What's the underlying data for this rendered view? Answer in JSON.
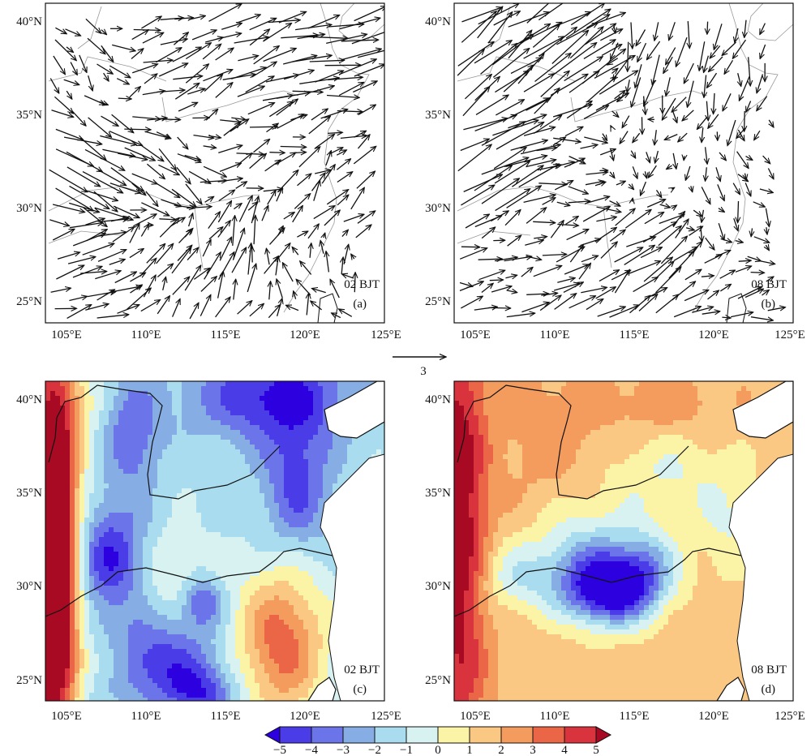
{
  "chart_data": [
    {
      "type": "vector_field",
      "panel": "a",
      "stamp": "02 BJT",
      "label": "(a)",
      "x_ticks": [
        "105°E",
        "110°E",
        "115°E",
        "120°E",
        "125°E"
      ],
      "y_ticks": [
        "25°N",
        "30°N",
        "35°N",
        "40°N"
      ],
      "xlim": [
        103.7,
        125
      ],
      "ylim": [
        24.0,
        40.8
      ],
      "reference_vector": {
        "magnitude": "3"
      },
      "region_flows": [
        {
          "lon": 106,
          "lat": 37,
          "u": 1.0,
          "v": -1.0
        },
        {
          "lon": 106,
          "lat": 32,
          "u": 2.5,
          "v": -1.2
        },
        {
          "lon": 106,
          "lat": 27,
          "u": 2.0,
          "v": 0.6
        },
        {
          "lon": 111,
          "lat": 37,
          "u": 1.6,
          "v": 0.8
        },
        {
          "lon": 111,
          "lat": 32,
          "u": 1.5,
          "v": -1.2
        },
        {
          "lon": 111,
          "lat": 27,
          "u": 0.8,
          "v": 1.5
        },
        {
          "lon": 116,
          "lat": 38,
          "u": 2.0,
          "v": 0.8
        },
        {
          "lon": 116,
          "lat": 33,
          "u": 1.5,
          "v": 0.5
        },
        {
          "lon": 116,
          "lat": 27,
          "u": 0.5,
          "v": 1.8
        },
        {
          "lon": 121,
          "lat": 38,
          "u": 2.5,
          "v": 0.5
        },
        {
          "lon": 121,
          "lat": 30,
          "u": 1.0,
          "v": 1.0
        },
        {
          "lon": 121,
          "lat": 26,
          "u": -0.5,
          "v": 1.0
        }
      ]
    },
    {
      "type": "vector_field",
      "panel": "b",
      "stamp": "08 BJT",
      "label": "(b)",
      "x_ticks": [
        "105°E",
        "110°E",
        "115°E",
        "120°E",
        "125°E"
      ],
      "y_ticks": [
        "25°N",
        "30°N",
        "35°N",
        "40°N"
      ],
      "xlim": [
        103.7,
        125
      ],
      "ylim": [
        24.0,
        40.8
      ],
      "region_flows": [
        {
          "lon": 106,
          "lat": 37,
          "u": 2.5,
          "v": 1.8
        },
        {
          "lon": 106,
          "lat": 32,
          "u": 3.0,
          "v": 1.5
        },
        {
          "lon": 106,
          "lat": 27,
          "u": 1.5,
          "v": 0.2
        },
        {
          "lon": 111,
          "lat": 37,
          "u": 3.0,
          "v": 2.0
        },
        {
          "lon": 111,
          "lat": 32,
          "u": 1.2,
          "v": 0.0
        },
        {
          "lon": 111,
          "lat": 27,
          "u": 1.5,
          "v": 0.8
        },
        {
          "lon": 116,
          "lat": 38,
          "u": -0.8,
          "v": -1.8
        },
        {
          "lon": 116,
          "lat": 33,
          "u": -0.4,
          "v": -0.6
        },
        {
          "lon": 116,
          "lat": 27,
          "u": 2.0,
          "v": 1.5
        },
        {
          "lon": 121,
          "lat": 38,
          "u": -0.4,
          "v": -1.6
        },
        {
          "lon": 121,
          "lat": 30,
          "u": 0.4,
          "v": -1.0
        },
        {
          "lon": 121,
          "lat": 26,
          "u": 1.2,
          "v": 0.4
        }
      ]
    },
    {
      "type": "heatmap",
      "panel": "c",
      "stamp": "02 BJT",
      "label": "(c)",
      "x_ticks": [
        "105°E",
        "110°E",
        "115°E",
        "120°E",
        "125°E"
      ],
      "y_ticks": [
        "25°N",
        "30°N",
        "35°N",
        "40°N"
      ],
      "xlim": [
        103.7,
        125
      ],
      "ylim": [
        24.0,
        40.8
      ],
      "base": -1.2,
      "bumps": [
        {
          "lon": 104.2,
          "lat": 33.5,
          "a": 9.0,
          "sx": 1.1,
          "sy": 7.0
        },
        {
          "lon": 104.2,
          "lat": 27.0,
          "a": 4.0,
          "sx": 1.0,
          "sy": 4.0
        },
        {
          "lon": 107.8,
          "lat": 31.5,
          "a": -3.8,
          "sx": 1.6,
          "sy": 2.0
        },
        {
          "lon": 110.5,
          "lat": 26.0,
          "a": -3.5,
          "sx": 2.8,
          "sy": 1.5
        },
        {
          "lon": 113.6,
          "lat": 29.2,
          "a": -3.0,
          "sx": 0.9,
          "sy": 0.9
        },
        {
          "lon": 113.5,
          "lat": 24.3,
          "a": -3.0,
          "sx": 1.5,
          "sy": 1.0
        },
        {
          "lon": 109.2,
          "lat": 38.0,
          "a": -2.8,
          "sx": 1.2,
          "sy": 2.0
        },
        {
          "lon": 118.0,
          "lat": 40.0,
          "a": -4.0,
          "sx": 3.5,
          "sy": 1.6
        },
        {
          "lon": 119.5,
          "lat": 35.5,
          "a": -3.2,
          "sx": 1.5,
          "sy": 2.5
        },
        {
          "lon": 118.5,
          "lat": 27.0,
          "a": 4.8,
          "sx": 2.0,
          "sy": 2.8
        },
        {
          "lon": 107.5,
          "lat": 26.0,
          "a": 2.0,
          "sx": 1.3,
          "sy": 1.0
        },
        {
          "lon": 111.5,
          "lat": 31.0,
          "a": 1.4,
          "sx": 1.5,
          "sy": 1.5
        },
        {
          "lon": 105.5,
          "lat": 39.5,
          "a": 1.2,
          "sx": 1.2,
          "sy": 1.5
        }
      ]
    },
    {
      "type": "heatmap",
      "panel": "d",
      "stamp": "08 BJT",
      "label": "(d)",
      "x_ticks": [
        "105°E",
        "110°E",
        "115°E",
        "120°E",
        "125°E"
      ],
      "y_ticks": [
        "25°N",
        "30°N",
        "35°N",
        "40°N"
      ],
      "xlim": [
        103.7,
        125
      ],
      "ylim": [
        24.0,
        40.8
      ],
      "base": 1.6,
      "bumps": [
        {
          "lon": 104.0,
          "lat": 33.0,
          "a": 4.5,
          "sx": 1.2,
          "sy": 9.0
        },
        {
          "lon": 113.5,
          "lat": 29.8,
          "a": -7.5,
          "sx": 2.0,
          "sy": 1.3
        },
        {
          "lon": 115.8,
          "lat": 31.2,
          "a": -3.0,
          "sx": 1.4,
          "sy": 1.4
        },
        {
          "lon": 112.0,
          "lat": 31.8,
          "a": -2.8,
          "sx": 2.2,
          "sy": 1.8
        },
        {
          "lon": 107.8,
          "lat": 30.5,
          "a": -2.2,
          "sx": 2.0,
          "sy": 1.3
        },
        {
          "lon": 117.0,
          "lat": 36.0,
          "a": -1.6,
          "sx": 3.0,
          "sy": 1.8
        },
        {
          "lon": 121.0,
          "lat": 33.0,
          "a": -1.5,
          "sx": 1.5,
          "sy": 2.0
        },
        {
          "lon": 110.0,
          "lat": 38.0,
          "a": 1.0,
          "sx": 2.5,
          "sy": 2.5
        },
        {
          "lon": 117.0,
          "lat": 39.5,
          "a": 1.2,
          "sx": 2.5,
          "sy": 1.2
        }
      ]
    }
  ],
  "colorbar": {
    "labels": [
      "−5",
      "−4",
      "−3",
      "−2",
      "−1",
      "0",
      "1",
      "2",
      "3",
      "4",
      "5"
    ],
    "colors": [
      "#2d00e0",
      "#4a3ce6",
      "#6b74e8",
      "#87aee4",
      "#a9dcee",
      "#d8f2f1",
      "#fbf3a6",
      "#fbc884",
      "#f39c5e",
      "#eb6646",
      "#d9333d",
      "#a70a22"
    ]
  },
  "map_colors": {
    "land": "#ffffff",
    "sea": "#ffffff",
    "coast": "#111111",
    "border": "#888888"
  }
}
